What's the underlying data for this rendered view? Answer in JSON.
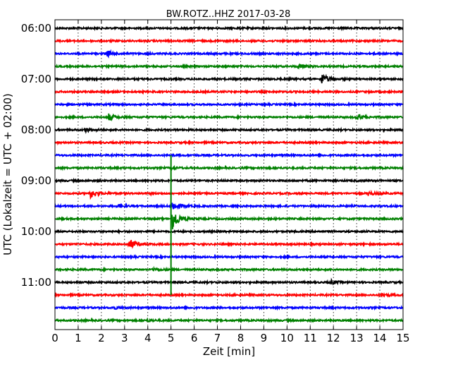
{
  "chart_data": {
    "type": "line",
    "title": "BW.ROTZ..HHZ 2017-03-28",
    "xlabel": "Zeit  [min]",
    "ylabel": "UTC (Lokalzeit = UTC + 02:00)",
    "xlim": [
      0,
      15
    ],
    "xticks": [
      0,
      1,
      2,
      3,
      4,
      5,
      6,
      7,
      8,
      9,
      10,
      11,
      12,
      13,
      14,
      15
    ],
    "ytick_labels": [
      "06:00",
      "07:00",
      "08:00",
      "09:00",
      "10:00",
      "11:00"
    ],
    "grid": "vertical dotted",
    "trace_interval_minutes": 15,
    "first_trace": "06:00",
    "color_cycle": [
      "#000000",
      "#ff0000",
      "#0000ff",
      "#008000"
    ],
    "series": [
      {
        "start": "06:00",
        "events": []
      },
      {
        "start": "06:15",
        "events": []
      },
      {
        "start": "06:30",
        "events": [
          {
            "t": 2.2,
            "amp": 0.35
          }
        ]
      },
      {
        "start": "06:45",
        "events": [
          {
            "t": 10.5,
            "amp": 0.2
          }
        ]
      },
      {
        "start": "07:00",
        "events": [
          {
            "t": 11.5,
            "amp": 0.55
          }
        ]
      },
      {
        "start": "07:15",
        "events": []
      },
      {
        "start": "07:30",
        "events": []
      },
      {
        "start": "07:45",
        "events": [
          {
            "t": 2.3,
            "amp": 0.4
          },
          {
            "t": 13.0,
            "amp": 0.35
          }
        ]
      },
      {
        "start": "08:00",
        "events": [
          {
            "t": 1.3,
            "amp": 0.2
          }
        ]
      },
      {
        "start": "08:15",
        "events": []
      },
      {
        "start": "08:30",
        "events": []
      },
      {
        "start": "08:45",
        "events": [
          {
            "t": 5.0,
            "amp": 0.1
          }
        ]
      },
      {
        "start": "09:00",
        "events": []
      },
      {
        "start": "09:15",
        "events": [
          {
            "t": 1.5,
            "amp": 0.5
          },
          {
            "t": 13.5,
            "amp": 0.2
          }
        ]
      },
      {
        "start": "09:30",
        "events": [
          {
            "t": 2.7,
            "amp": 0.2
          },
          {
            "t": 5.05,
            "amp": 0.5
          }
        ]
      },
      {
        "start": "09:45",
        "events": [
          {
            "t": 5.05,
            "amp": 1.3
          }
        ]
      },
      {
        "start": "10:00",
        "events": []
      },
      {
        "start": "10:15",
        "events": [
          {
            "t": 3.2,
            "amp": 0.55
          }
        ]
      },
      {
        "start": "10:30",
        "events": []
      },
      {
        "start": "10:45",
        "events": [
          {
            "t": 4.2,
            "amp": 0.15
          }
        ]
      },
      {
        "start": "11:00",
        "events": [
          {
            "t": 11.9,
            "amp": 0.2
          }
        ]
      },
      {
        "start": "11:15",
        "events": [
          {
            "t": 14.1,
            "amp": 0.15
          }
        ]
      },
      {
        "start": "11:30",
        "events": [
          {
            "t": 2.5,
            "amp": 0.15
          }
        ]
      },
      {
        "start": "11:45",
        "events": [
          {
            "t": 4.0,
            "amp": 0.1
          }
        ]
      }
    ],
    "spike": {
      "t": 5.0,
      "from": "08:30",
      "to": "11:15",
      "color": "#008000"
    }
  }
}
